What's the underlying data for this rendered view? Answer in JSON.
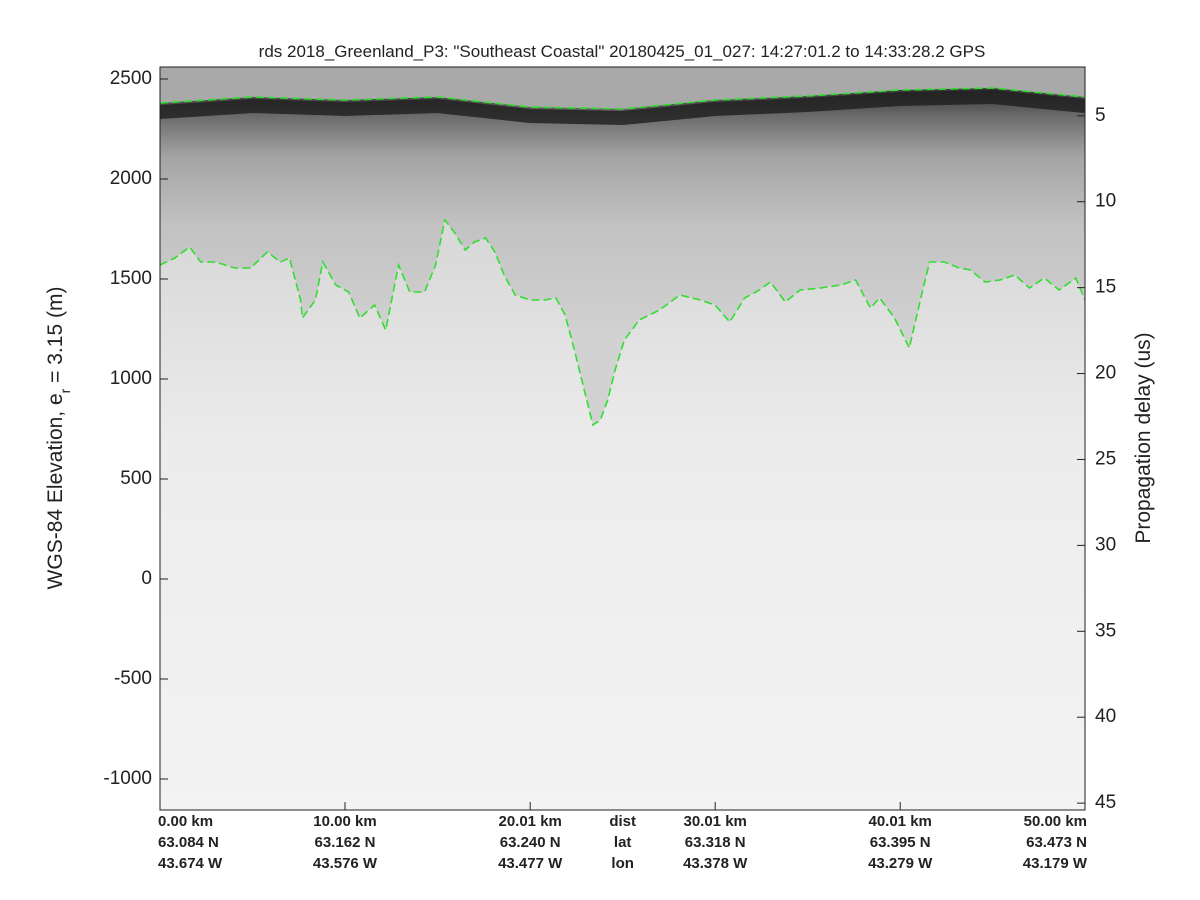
{
  "chart_data": {
    "type": "line",
    "title": "rds 2018_Greenland_P3: \"Southeast Coastal\"  20180425_01_027: 14:27:01.2 to 14:33:28.2 GPS",
    "ylabel_parts": [
      "WGS-84 Elevation, e",
      "r",
      " = 3.15 (m)"
    ],
    "y2label": "Propagation delay (us)",
    "xlim": [
      0,
      50
    ],
    "xticks": [
      {
        "value": 0,
        "label": "0.00 km"
      },
      {
        "value": 10,
        "label": "10.00 km"
      },
      {
        "value": 20.01,
        "label": "20.01 km"
      },
      {
        "value": 30.01,
        "label": "30.01 km"
      },
      {
        "value": 40.01,
        "label": "40.01 km"
      },
      {
        "value": 50,
        "label": "50.00 km"
      }
    ],
    "lat_labels": [
      "63.084 N",
      "63.162 N",
      "63.240 N",
      "63.318 N",
      "63.395 N",
      "63.473 N"
    ],
    "lon_labels": [
      "43.674 W",
      "43.576 W",
      "43.477 W",
      "43.378 W",
      "43.279 W",
      "43.179 W"
    ],
    "row_labels": [
      "dist",
      "lat",
      "lon"
    ],
    "ylim": [
      -1155,
      2560
    ],
    "yticks": [
      -1000,
      -500,
      0,
      500,
      1000,
      1500,
      2000,
      2500
    ],
    "y2lim": [
      2.16,
      45.4
    ],
    "y2ticks": [
      5,
      10,
      15,
      20,
      25,
      30,
      35,
      40,
      45
    ],
    "series": [
      {
        "color": "#33dd33",
        "x": [
          0,
          5,
          10,
          15,
          20,
          25,
          30,
          35,
          40,
          45,
          50
        ],
        "values": [
          2380,
          2410,
          2395,
          2410,
          2360,
          2350,
          2395,
          2415,
          2445,
          2455,
          2410
        ]
      },
      {
        "color": "#33dd33",
        "x": [
          0,
          0.8,
          1.6,
          2.2,
          3.0,
          4.05,
          4.9,
          5.8,
          6.5,
          7.0,
          7.6,
          7.7,
          8.4,
          8.8,
          9.5,
          10.2,
          10.8,
          11.6,
          12.2,
          12.9,
          13.5,
          14.3,
          14.9,
          15.4,
          15.9,
          16.5,
          17.0,
          17.6,
          18.1,
          18.6,
          19.2,
          20.0,
          20.8,
          21.4,
          21.9,
          22.4,
          23.0,
          23.4,
          23.8,
          24.2,
          24.6,
          25.1,
          25.9,
          27.0,
          28.1,
          29.2,
          30.0,
          30.8,
          31.6,
          32.4,
          33.0,
          33.8,
          34.6,
          35.7,
          36.8,
          37.6,
          38.4,
          38.9,
          39.7,
          40.5,
          41.1,
          41.6,
          42.4,
          43.2,
          43.8,
          44.6,
          45.4,
          46.2,
          47.0,
          47.8,
          48.6,
          49.5,
          50.0
        ],
        "values": [
          1570,
          1605,
          1660,
          1585,
          1585,
          1555,
          1555,
          1635,
          1585,
          1605,
          1395,
          1305,
          1395,
          1585,
          1470,
          1435,
          1305,
          1370,
          1245,
          1570,
          1435,
          1435,
          1570,
          1795,
          1735,
          1645,
          1685,
          1705,
          1635,
          1520,
          1420,
          1395,
          1395,
          1405,
          1320,
          1145,
          920,
          770,
          795,
          895,
          1045,
          1195,
          1295,
          1345,
          1420,
          1395,
          1370,
          1285,
          1405,
          1445,
          1485,
          1385,
          1445,
          1455,
          1470,
          1495,
          1355,
          1405,
          1305,
          1155,
          1395,
          1585,
          1585,
          1555,
          1545,
          1485,
          1495,
          1520,
          1455,
          1505,
          1445,
          1505,
          1395
        ]
      }
    ]
  }
}
